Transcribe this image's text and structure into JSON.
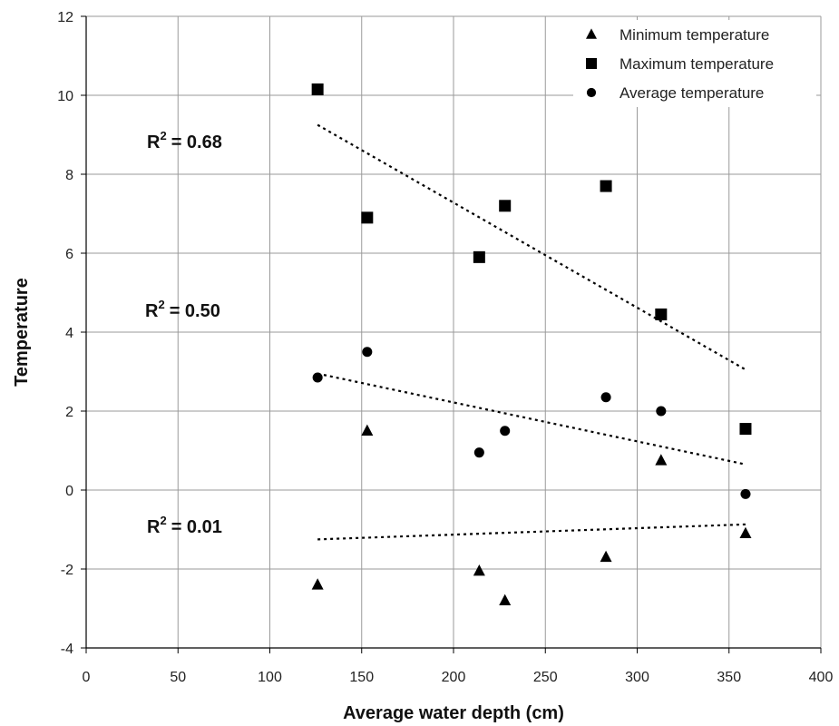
{
  "chart_data": {
    "type": "scatter",
    "xlabel": "Average water depth (cm)",
    "ylabel": "Temperature",
    "xlim": [
      0,
      400
    ],
    "ylim": [
      -4,
      12
    ],
    "xticks": [
      0,
      50,
      100,
      150,
      200,
      250,
      300,
      350,
      400
    ],
    "yticks": [
      -4,
      -2,
      0,
      2,
      4,
      6,
      8,
      10,
      12
    ],
    "grid": true,
    "legend_position": "top-right",
    "series": [
      {
        "name": "Minimum temperature",
        "marker": "triangle",
        "color": "#000000",
        "points": [
          [
            126,
            -2.4
          ],
          [
            153,
            1.5
          ],
          [
            214,
            -2.05
          ],
          [
            228,
            -2.8
          ],
          [
            283,
            -1.7
          ],
          [
            313,
            0.75
          ],
          [
            359,
            -1.1
          ]
        ],
        "trend": {
          "x": [
            126,
            359
          ],
          "y": [
            -1.25,
            -0.87
          ]
        }
      },
      {
        "name": "Maximum temperature",
        "marker": "square",
        "color": "#000000",
        "points": [
          [
            126,
            10.15
          ],
          [
            153,
            6.9
          ],
          [
            214,
            5.9
          ],
          [
            228,
            7.2
          ],
          [
            283,
            7.7
          ],
          [
            313,
            4.45
          ],
          [
            359,
            1.55
          ]
        ],
        "trend": {
          "x": [
            126,
            359
          ],
          "y": [
            9.25,
            3.05
          ]
        }
      },
      {
        "name": "Average temperature",
        "marker": "circle",
        "color": "#000000",
        "points": [
          [
            126,
            2.85
          ],
          [
            153,
            3.5
          ],
          [
            214,
            0.95
          ],
          [
            228,
            1.5
          ],
          [
            283,
            2.35
          ],
          [
            313,
            2.0
          ],
          [
            359,
            -0.1
          ]
        ],
        "trend": {
          "x": [
            126,
            359
          ],
          "y": [
            2.95,
            0.65
          ]
        }
      }
    ],
    "annotations": [
      {
        "id": "max",
        "label": "R",
        "sup": "2",
        "value": "= 0.68"
      },
      {
        "id": "avg",
        "label": "R",
        "sup": "2",
        "value": "= 0.50"
      },
      {
        "id": "min",
        "label": "R",
        "sup": "2",
        "value": "= 0.01"
      }
    ]
  }
}
